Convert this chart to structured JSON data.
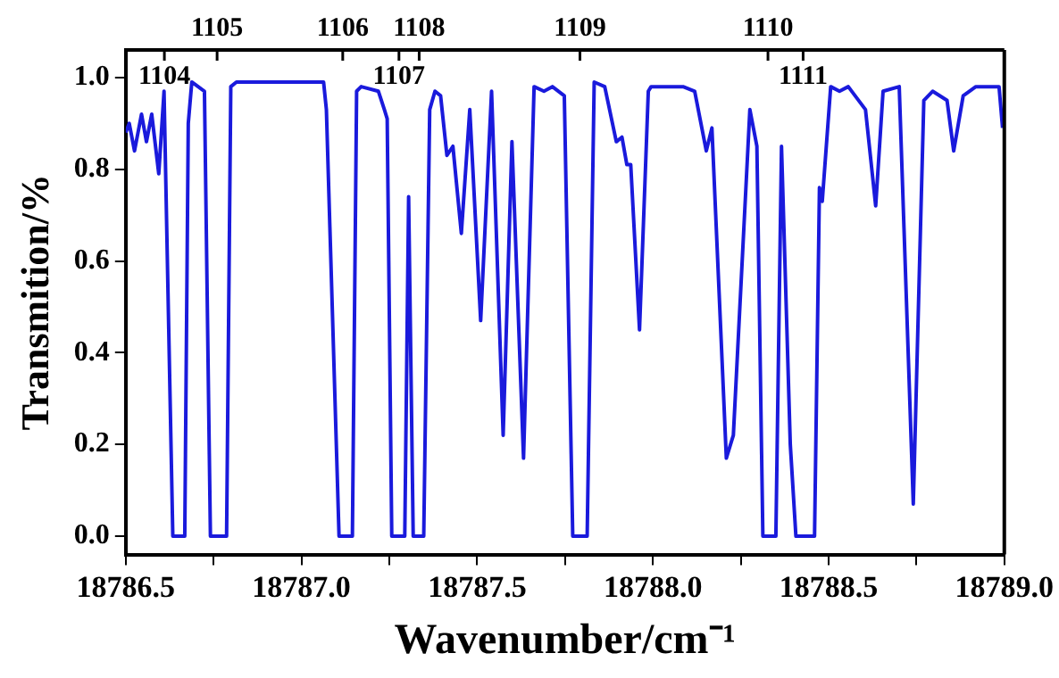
{
  "chart_data": {
    "type": "line",
    "xlabel": "Wavenumber/cm⁻¹",
    "ylabel": "Transmition/%",
    "color": "#1a1adc",
    "marker": "none",
    "line_style": "solid",
    "x": [
      18786.5,
      18786.51,
      18786.525,
      18786.545,
      18786.559,
      18786.574,
      18786.594,
      18786.609,
      18786.634,
      18786.668,
      18786.678,
      18786.688,
      18786.724,
      18786.741,
      18786.787,
      18786.799,
      18786.815,
      18787.063,
      18787.071,
      18787.107,
      18787.145,
      18787.157,
      18787.17,
      18787.219,
      18787.236,
      18787.244,
      18787.257,
      18787.294,
      18787.305,
      18787.318,
      18787.348,
      18787.365,
      18787.38,
      18787.396,
      18787.414,
      18787.431,
      18787.455,
      18787.479,
      18787.51,
      18787.541,
      18787.574,
      18787.599,
      18787.632,
      18787.662,
      18787.69,
      18787.714,
      18787.748,
      18787.772,
      18787.813,
      18787.833,
      18787.863,
      18787.896,
      18787.912,
      18787.926,
      18787.937,
      18787.962,
      18787.987,
      18787.995,
      18788.061,
      18788.086,
      18788.119,
      18788.152,
      18788.168,
      18788.209,
      18788.229,
      18788.276,
      18788.296,
      18788.313,
      18788.35,
      18788.366,
      18788.391,
      18788.407,
      18788.46,
      18788.474,
      18788.482,
      18788.506,
      18788.531,
      18788.556,
      18788.605,
      18788.634,
      18788.655,
      18788.701,
      18788.741,
      18788.771,
      18788.796,
      18788.837,
      18788.856,
      18788.883,
      18788.919,
      18788.985,
      18788.995
    ],
    "values": [
      0.88,
      0.9,
      0.84,
      0.92,
      0.86,
      0.92,
      0.79,
      0.97,
      0,
      0,
      0.9,
      0.99,
      0.97,
      0,
      0,
      0.98,
      0.99,
      0.99,
      0.93,
      0,
      0,
      0.97,
      0.98,
      0.97,
      0.93,
      0.91,
      0,
      0,
      0.74,
      0,
      0,
      0.93,
      0.97,
      0.96,
      0.83,
      0.85,
      0.66,
      0.93,
      0.47,
      0.97,
      0.22,
      0.86,
      0.17,
      0.98,
      0.97,
      0.98,
      0.96,
      0,
      0,
      0.99,
      0.98,
      0.86,
      0.87,
      0.81,
      0.81,
      0.45,
      0.97,
      0.98,
      0.98,
      0.98,
      0.97,
      0.84,
      0.89,
      0.17,
      0.22,
      0.93,
      0.85,
      0,
      0,
      0.85,
      0.2,
      0,
      0,
      0.76,
      0.73,
      0.98,
      0.97,
      0.98,
      0.93,
      0.72,
      0.97,
      0.98,
      0.07,
      0.95,
      0.97,
      0.95,
      0.84,
      0.96,
      0.98,
      0.98,
      0.89
    ],
    "xlim": [
      18786.5,
      18789.0
    ],
    "xticks": [
      18786.5,
      {
        "value": 18786.75,
        "label": null
      },
      {
        "value": 18787.0,
        "label": "18787.0"
      },
      {
        "value": 18787.25,
        "label": null
      },
      18787.5,
      {
        "value": 18787.75,
        "label": null
      },
      {
        "value": 18788.0,
        "label": "18788.0"
      },
      {
        "value": 18788.25,
        "label": null
      },
      18788.5,
      {
        "value": 18788.75,
        "label": null
      },
      {
        "value": 18789.0,
        "label": "18789.0"
      }
    ],
    "ylim": [
      -0.04,
      1.06
    ],
    "yticks": [
      {
        "value": 0,
        "label": "0.0"
      },
      0.2,
      0.4,
      0.6,
      0.8,
      {
        "value": 1,
        "label": "1.0"
      }
    ],
    "annotations": [
      "1104",
      "1105",
      "1106",
      "1107",
      "1108",
      "1109",
      "1110",
      "1111"
    ]
  }
}
